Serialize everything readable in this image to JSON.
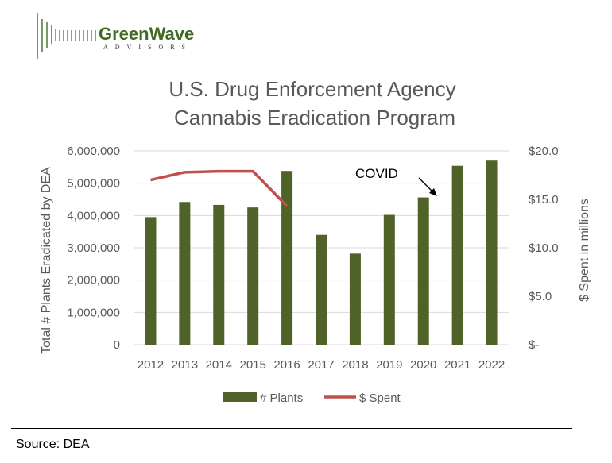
{
  "logo": {
    "name": "GreenWave",
    "tagline": "ADVISORS",
    "color": "#3f6b22"
  },
  "source": "Source: DEA",
  "chart_data": {
    "type": "bar+line",
    "title": [
      "U.S. Drug Enforcement Agency",
      "Cannabis Eradication Program"
    ],
    "categories": [
      "2012",
      "2013",
      "2014",
      "2015",
      "2016",
      "2017",
      "2018",
      "2019",
      "2020",
      "2021",
      "2022"
    ],
    "series": [
      {
        "name": "# Plants",
        "type": "bar",
        "axis": "left",
        "color": "#4f6228",
        "values": [
          3950000,
          4420000,
          4330000,
          4250000,
          5380000,
          3400000,
          2820000,
          4020000,
          4560000,
          5540000,
          5700000
        ]
      },
      {
        "name": "$ Spent",
        "type": "line",
        "axis": "right",
        "color": "#c0504d",
        "values": [
          17.0,
          17.8,
          17.9,
          17.9,
          14.3,
          null,
          null,
          null,
          null,
          null,
          null
        ]
      }
    ],
    "ylabel_left": "Total # Plants Eradicated by DEA",
    "ylabel_right": "$ Spent in millions",
    "ylim_left": [
      0,
      6000000
    ],
    "ylim_right": [
      0,
      20
    ],
    "left_ticks": [
      "0",
      "1,000,000",
      "2,000,000",
      "3,000,000",
      "4,000,000",
      "5,000,000",
      "6,000,000"
    ],
    "right_ticks": [
      "$-",
      "$5.0",
      "$10.0",
      "$15.0",
      "$20.0"
    ],
    "annotation": {
      "text": "COVID",
      "points_to": "2020"
    },
    "grid": true,
    "legend_position": "bottom"
  }
}
